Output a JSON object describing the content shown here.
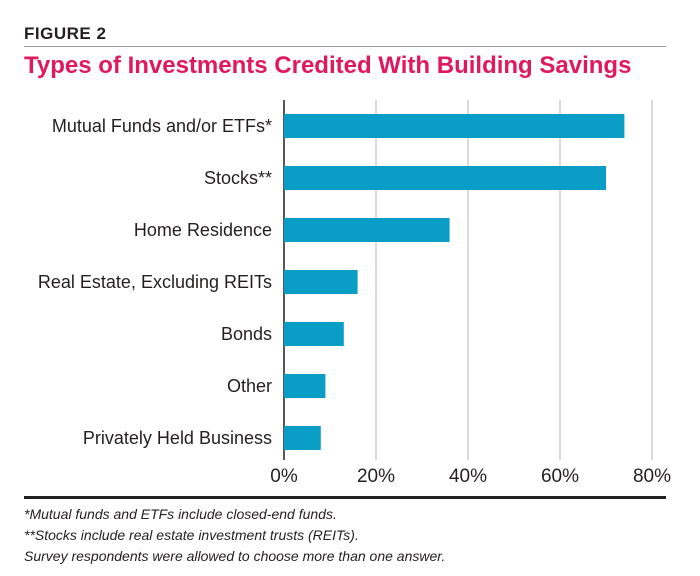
{
  "figure_label": "FIGURE 2",
  "chart_data": {
    "type": "bar",
    "orientation": "horizontal",
    "title": "Types of Investments Credited With Building Savings",
    "categories": [
      "Mutual Funds and/or ETFs*",
      "Stocks**",
      "Home Residence",
      "Real Estate, Excluding REITs",
      "Bonds",
      "Other",
      "Privately Held Business"
    ],
    "values": [
      74,
      70,
      36,
      16,
      13,
      9,
      8
    ],
    "xlim": [
      0,
      80
    ],
    "xticks": [
      0,
      20,
      40,
      60,
      80
    ],
    "tick_labels": [
      "0%",
      "20%",
      "40%",
      "60%",
      "80%"
    ],
    "grid": true,
    "bar_color": "#0a9ec6"
  },
  "footnotes": [
    "*Mutual funds and ETFs include closed-end funds.",
    "**Stocks include real estate investment trusts (REITs).",
    "Survey respondents were allowed to choose more than one answer."
  ]
}
